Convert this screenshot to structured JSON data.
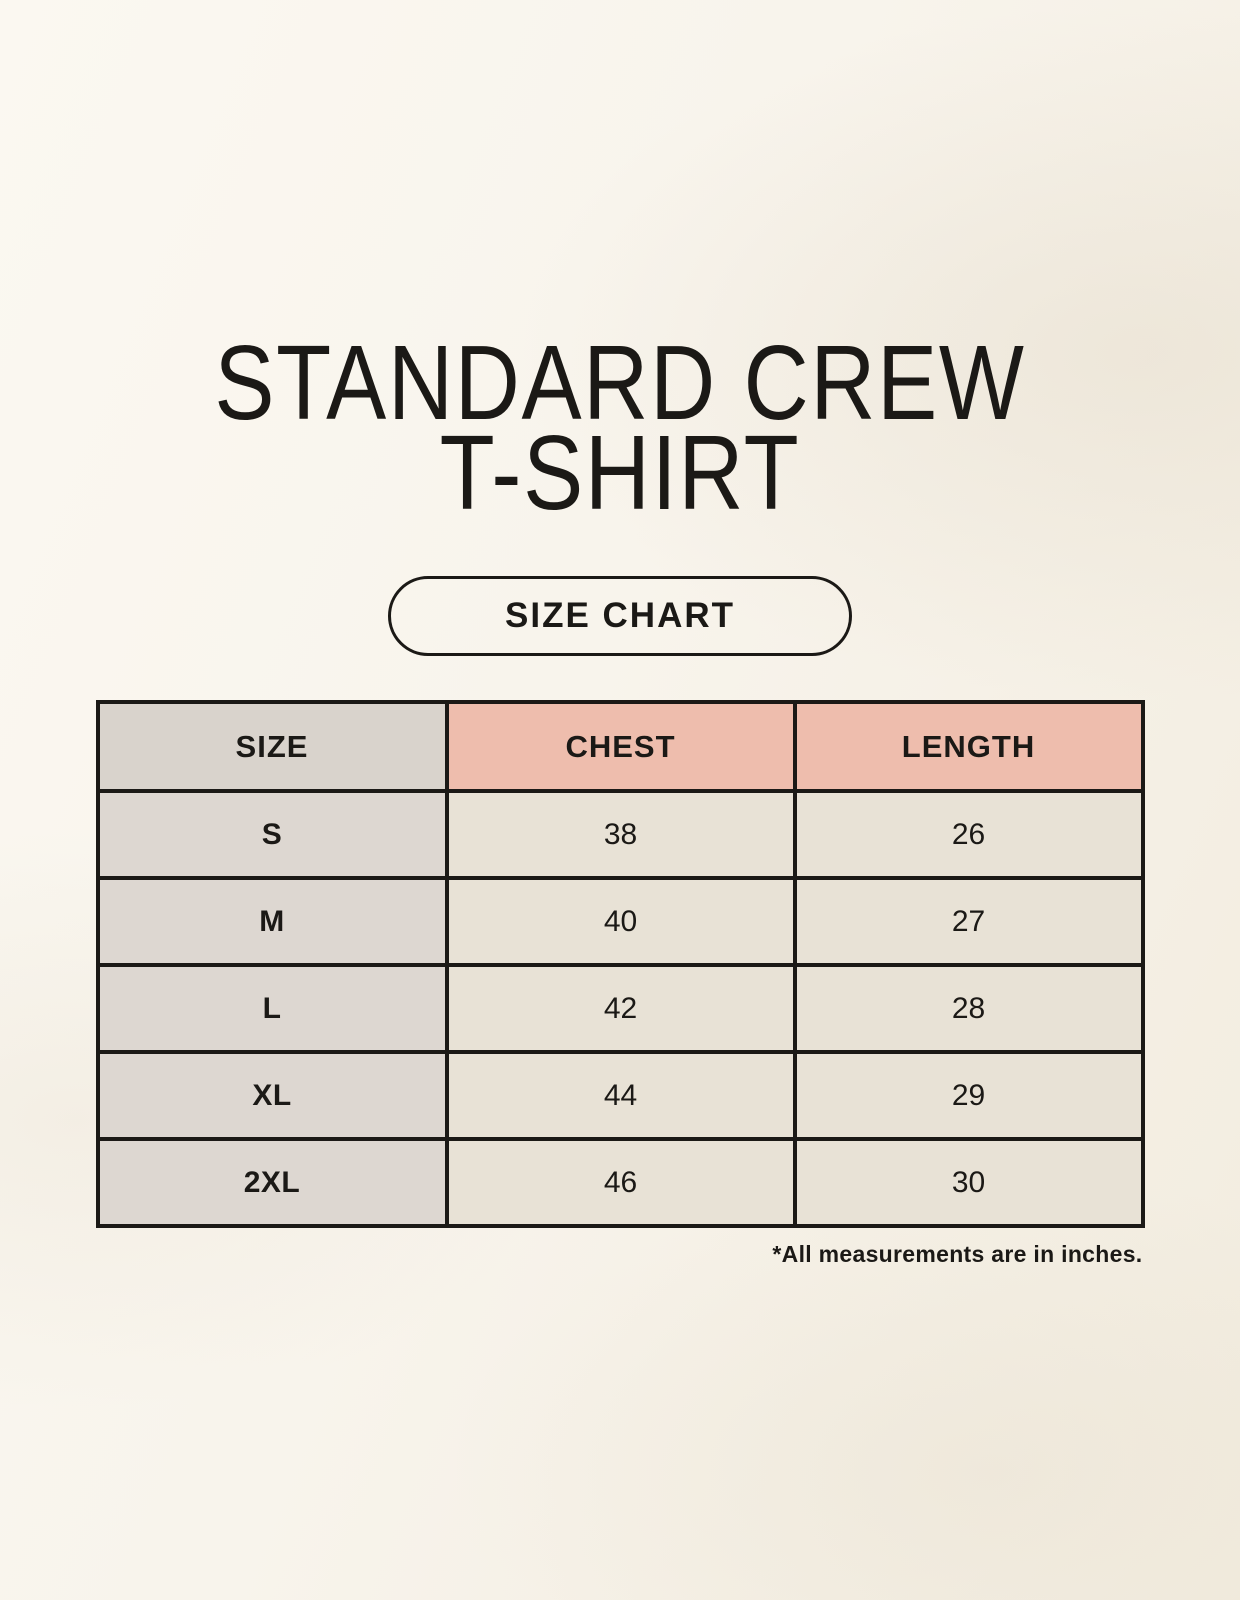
{
  "header": {
    "title_line1": "STANDARD CREW",
    "title_line2": "T-SHIRT",
    "badge_label": "SIZE CHART"
  },
  "chart_data": {
    "type": "table",
    "title": "STANDARD CREW T-SHIRT",
    "columns": [
      "SIZE",
      "CHEST",
      "LENGTH"
    ],
    "rows": [
      [
        "S",
        "38",
        "26"
      ],
      [
        "M",
        "40",
        "27"
      ],
      [
        "L",
        "42",
        "28"
      ],
      [
        "XL",
        "44",
        "29"
      ],
      [
        "2XL",
        "46",
        "30"
      ]
    ],
    "units": "inches"
  },
  "footnote": "*All measurements are in inches.",
  "colors": {
    "background": "#f8f4ec",
    "header_neutral": "#d9d3cc",
    "header_accent": "#eebdad",
    "size_column": "#ddd7d1",
    "value_cell": "#e8e2d6",
    "border": "#1b1916",
    "text": "#1b1916"
  }
}
